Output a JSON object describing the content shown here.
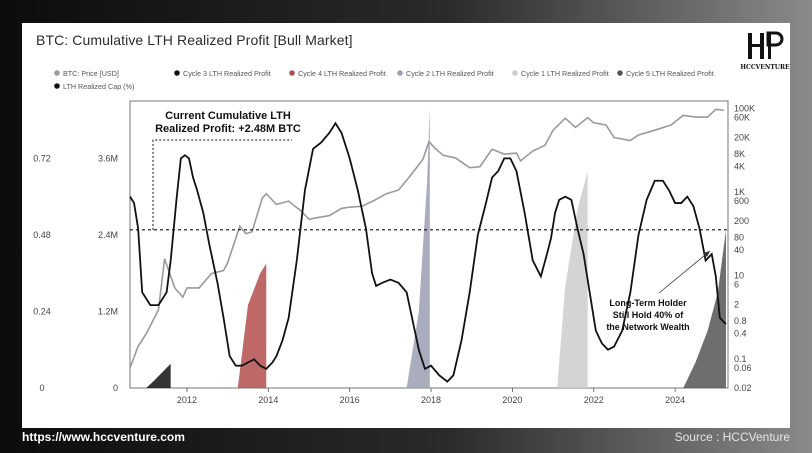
{
  "chart_data": {
    "type": "line",
    "title": "BTC: Cumulative LTH Realized Profit [Bull Market]",
    "legend": {
      "placement": "top",
      "items": [
        {
          "name": "BTC: Price [USD]",
          "color": "#9a9a9a"
        },
        {
          "name": "Cycle 3 LTH Realized Profit",
          "color": "#111111"
        },
        {
          "name": "Cycle 4 LTH Realized Profit",
          "color": "#b34e4e"
        },
        {
          "name": "Cycle 2 LTH Realized Profit",
          "color": "#9a9fb2"
        },
        {
          "name": "Cycle 1 LTH Realized Profit",
          "color": "#cccccc"
        },
        {
          "name": "Cycle 5 LTH Realized Profit",
          "color": "#555555"
        },
        {
          "name": "LTH Realized Cap (%)",
          "color": "#111111"
        }
      ]
    },
    "x_ticks": [
      "2012",
      "2014",
      "2016",
      "2018",
      "2020",
      "2022",
      "2024"
    ],
    "x_range": [
      2010.6,
      2025.3
    ],
    "left_axis_outer": {
      "ticks": [
        "0",
        "0.24",
        "0.48",
        "0.72"
      ],
      "range": [
        0,
        0.9
      ]
    },
    "left_axis_inner": {
      "ticks": [
        "0",
        "1.2M",
        "2.4M",
        "3.6M"
      ],
      "range": [
        0,
        4500000
      ]
    },
    "right_axis": {
      "scale": "log",
      "ticks": [
        "0.02",
        "0.06",
        "0.1",
        "0.4",
        "0.8",
        "2",
        "6",
        "10",
        "40",
        "80",
        "200",
        "600",
        "1K",
        "4K",
        "8K",
        "20K",
        "60K",
        "100K"
      ],
      "range": [
        0.02,
        150000
      ]
    },
    "annotations": {
      "current_label": "Current Cumulative LTH\nRealized Profit: +2.48M BTC",
      "current_value": 2480000,
      "note": "Long-Term Holder\nStill Hold 40% of\nthe Network Wealth"
    },
    "series": [
      {
        "name": "BTC: Price [USD]",
        "axis": "right",
        "x": [
          2010.6,
          2010.8,
          2011.0,
          2011.3,
          2011.45,
          2011.7,
          2011.9,
          2012.0,
          2012.3,
          2012.6,
          2012.9,
          2013.0,
          2013.3,
          2013.45,
          2013.6,
          2013.85,
          2013.95,
          2014.2,
          2014.5,
          2014.8,
          2015.0,
          2015.2,
          2015.5,
          2015.8,
          2016.0,
          2016.3,
          2016.6,
          2016.9,
          2017.2,
          2017.5,
          2017.8,
          2017.95,
          2018.1,
          2018.3,
          2018.6,
          2018.95,
          2019.2,
          2019.5,
          2019.8,
          2020.1,
          2020.2,
          2020.5,
          2020.8,
          2021.0,
          2021.3,
          2021.55,
          2021.85,
          2022.0,
          2022.3,
          2022.5,
          2022.9,
          2023.1,
          2023.5,
          2023.9,
          2024.2,
          2024.5,
          2024.8,
          2025.0,
          2025.2
        ],
        "values": [
          0.06,
          0.2,
          0.4,
          1.5,
          25,
          5,
          3,
          5,
          5,
          11,
          13,
          20,
          150,
          100,
          110,
          700,
          900,
          500,
          600,
          350,
          220,
          240,
          270,
          400,
          430,
          450,
          620,
          900,
          1100,
          2500,
          6000,
          16000,
          11000,
          7500,
          6500,
          3800,
          4000,
          10500,
          8000,
          8500,
          5500,
          9500,
          13000,
          30000,
          58000,
          35000,
          60000,
          45000,
          40000,
          20000,
          17000,
          23000,
          30000,
          40000,
          68000,
          62000,
          62000,
          95000,
          90000
        ]
      },
      {
        "name": "LTH Realized Cap (%)",
        "axis": "left_outer",
        "x": [
          2010.6,
          2010.7,
          2010.8,
          2010.9,
          2011.1,
          2011.3,
          2011.5,
          2011.6,
          2011.75,
          2011.85,
          2011.95,
          2012.05,
          2012.15,
          2012.25,
          2012.4,
          2012.55,
          2012.75,
          2012.9,
          2013.05,
          2013.2,
          2013.35,
          2013.5,
          2013.65,
          2013.8,
          2013.95,
          2014.1,
          2014.2,
          2014.35,
          2014.5,
          2014.7,
          2014.9,
          2015.1,
          2015.3,
          2015.5,
          2015.65,
          2015.8,
          2016.0,
          2016.2,
          2016.4,
          2016.55,
          2016.65,
          2016.8,
          2017.0,
          2017.2,
          2017.4,
          2017.55,
          2017.7,
          2017.85,
          2018.0,
          2018.2,
          2018.4,
          2018.55,
          2018.75,
          2018.95,
          2019.15,
          2019.35,
          2019.5,
          2019.65,
          2019.8,
          2019.95,
          2020.1,
          2020.3,
          2020.5,
          2020.7,
          2020.85,
          2020.95,
          2021.05,
          2021.15,
          2021.3,
          2021.45,
          2021.6,
          2021.75,
          2021.9,
          2022.05,
          2022.2,
          2022.35,
          2022.5,
          2022.7,
          2022.9,
          2023.1,
          2023.3,
          2023.5,
          2023.7,
          2023.85,
          2024.0,
          2024.15,
          2024.3,
          2024.45,
          2024.6,
          2024.75,
          2024.9,
          2025.0,
          2025.1,
          2025.25
        ],
        "values": [
          0.6,
          0.58,
          0.5,
          0.3,
          0.26,
          0.26,
          0.3,
          0.4,
          0.6,
          0.72,
          0.73,
          0.72,
          0.66,
          0.62,
          0.55,
          0.45,
          0.33,
          0.22,
          0.1,
          0.07,
          0.07,
          0.08,
          0.09,
          0.07,
          0.06,
          0.08,
          0.1,
          0.15,
          0.22,
          0.4,
          0.62,
          0.75,
          0.77,
          0.8,
          0.83,
          0.8,
          0.72,
          0.62,
          0.5,
          0.36,
          0.32,
          0.33,
          0.34,
          0.33,
          0.3,
          0.21,
          0.12,
          0.06,
          0.07,
          0.04,
          0.02,
          0.04,
          0.15,
          0.3,
          0.48,
          0.58,
          0.66,
          0.68,
          0.72,
          0.72,
          0.68,
          0.55,
          0.4,
          0.35,
          0.42,
          0.47,
          0.55,
          0.59,
          0.6,
          0.59,
          0.5,
          0.42,
          0.3,
          0.18,
          0.14,
          0.12,
          0.13,
          0.18,
          0.3,
          0.48,
          0.59,
          0.65,
          0.65,
          0.62,
          0.58,
          0.58,
          0.6,
          0.57,
          0.5,
          0.4,
          0.42,
          0.35,
          0.22,
          0.2
        ]
      },
      {
        "name": "Cycle 3 LTH Realized Profit",
        "axis": "left_inner",
        "x": [
          2011.0,
          2011.2,
          2011.4,
          2011.6,
          2011.6
        ],
        "values": [
          0,
          120000,
          250000,
          380000,
          0
        ]
      },
      {
        "name": "Cycle 4 LTH Realized Profit",
        "axis": "left_inner",
        "x": [
          2013.25,
          2013.5,
          2013.8,
          2013.95,
          2013.95
        ],
        "values": [
          0,
          1300000,
          1800000,
          1950000,
          0
        ]
      },
      {
        "name": "Cycle 2 LTH Realized Profit",
        "axis": "left_inner",
        "x": [
          2017.4,
          2017.7,
          2017.9,
          2017.97,
          2017.97
        ],
        "values": [
          0,
          1200000,
          3200000,
          4400000,
          0
        ]
      },
      {
        "name": "Cycle 1 LTH Realized Profit",
        "axis": "left_inner",
        "x": [
          2021.1,
          2021.3,
          2021.6,
          2021.85,
          2021.85
        ],
        "values": [
          0,
          1600000,
          2800000,
          3400000,
          0
        ]
      },
      {
        "name": "Cycle 5 LTH Realized Profit",
        "axis": "left_inner",
        "x": [
          2024.2,
          2024.5,
          2024.8,
          2025.05,
          2025.25,
          2025.25
        ],
        "values": [
          0,
          400000,
          900000,
          1500000,
          2480000,
          0
        ]
      }
    ]
  },
  "footer": {
    "url": "https://www.hccventure.com",
    "source": "Source : HCCVenture"
  },
  "logo": {
    "text": "HCCVENTURE"
  }
}
